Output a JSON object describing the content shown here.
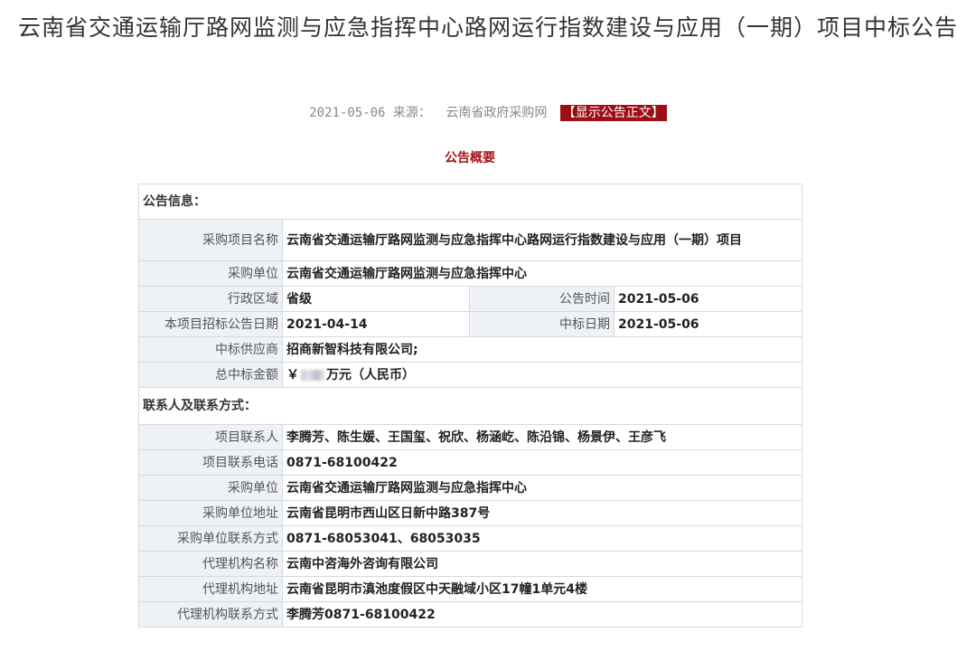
{
  "title": "云南省交通运输厅路网监测与应急指挥中心路网运行指数建设与应用（一期）项目中标公告",
  "meta": {
    "date": "2021-05-06",
    "source_label": "来源：",
    "source": "云南省政府采购网",
    "show_full_button": "【显示公告正文】"
  },
  "summary_heading": "公告概要",
  "info": {
    "section": "公告信息：",
    "project_name_label": "采购项目名称",
    "project_name": "云南省交通运输厅路网监测与应急指挥中心路网运行指数建设与应用（一期）项目",
    "purchaser_label": "采购单位",
    "purchaser": "云南省交通运输厅路网监测与应急指挥中心",
    "region_label": "行政区域",
    "region": "省级",
    "announce_time_label": "公告时间",
    "announce_time": "2021-05-06",
    "tender_date_label": "本项目招标公告日期",
    "tender_date": "2021-04-14",
    "award_date_label": "中标日期",
    "award_date": "2021-05-06",
    "supplier_label": "中标供应商",
    "supplier": "招商新智科技有限公司;",
    "amount_label": "总中标金额",
    "amount_prefix": "￥",
    "amount_suffix": "万元（人民币）"
  },
  "contact": {
    "section": "联系人及联系方式：",
    "rows": [
      {
        "label": "项目联系人",
        "value": "李腾芳、陈生媛、王国玺、祝欣、杨涵屹、陈沿锦、杨景伊、王彦飞"
      },
      {
        "label": "项目联系电话",
        "value": "0871-68100422"
      },
      {
        "label": "采购单位",
        "value": "云南省交通运输厅路网监测与应急指挥中心"
      },
      {
        "label": "采购单位地址",
        "value": "云南省昆明市西山区日新中路387号"
      },
      {
        "label": "采购单位联系方式",
        "value": "0871-68053041、68053035"
      },
      {
        "label": "代理机构名称",
        "value": "云南中咨海外咨询有限公司"
      },
      {
        "label": "代理机构地址",
        "value": "云南省昆明市滇池度假区中天融域小区17幢1单元4楼"
      },
      {
        "label": "代理机构联系方式",
        "value": "李腾芳0871-68100422"
      }
    ]
  }
}
